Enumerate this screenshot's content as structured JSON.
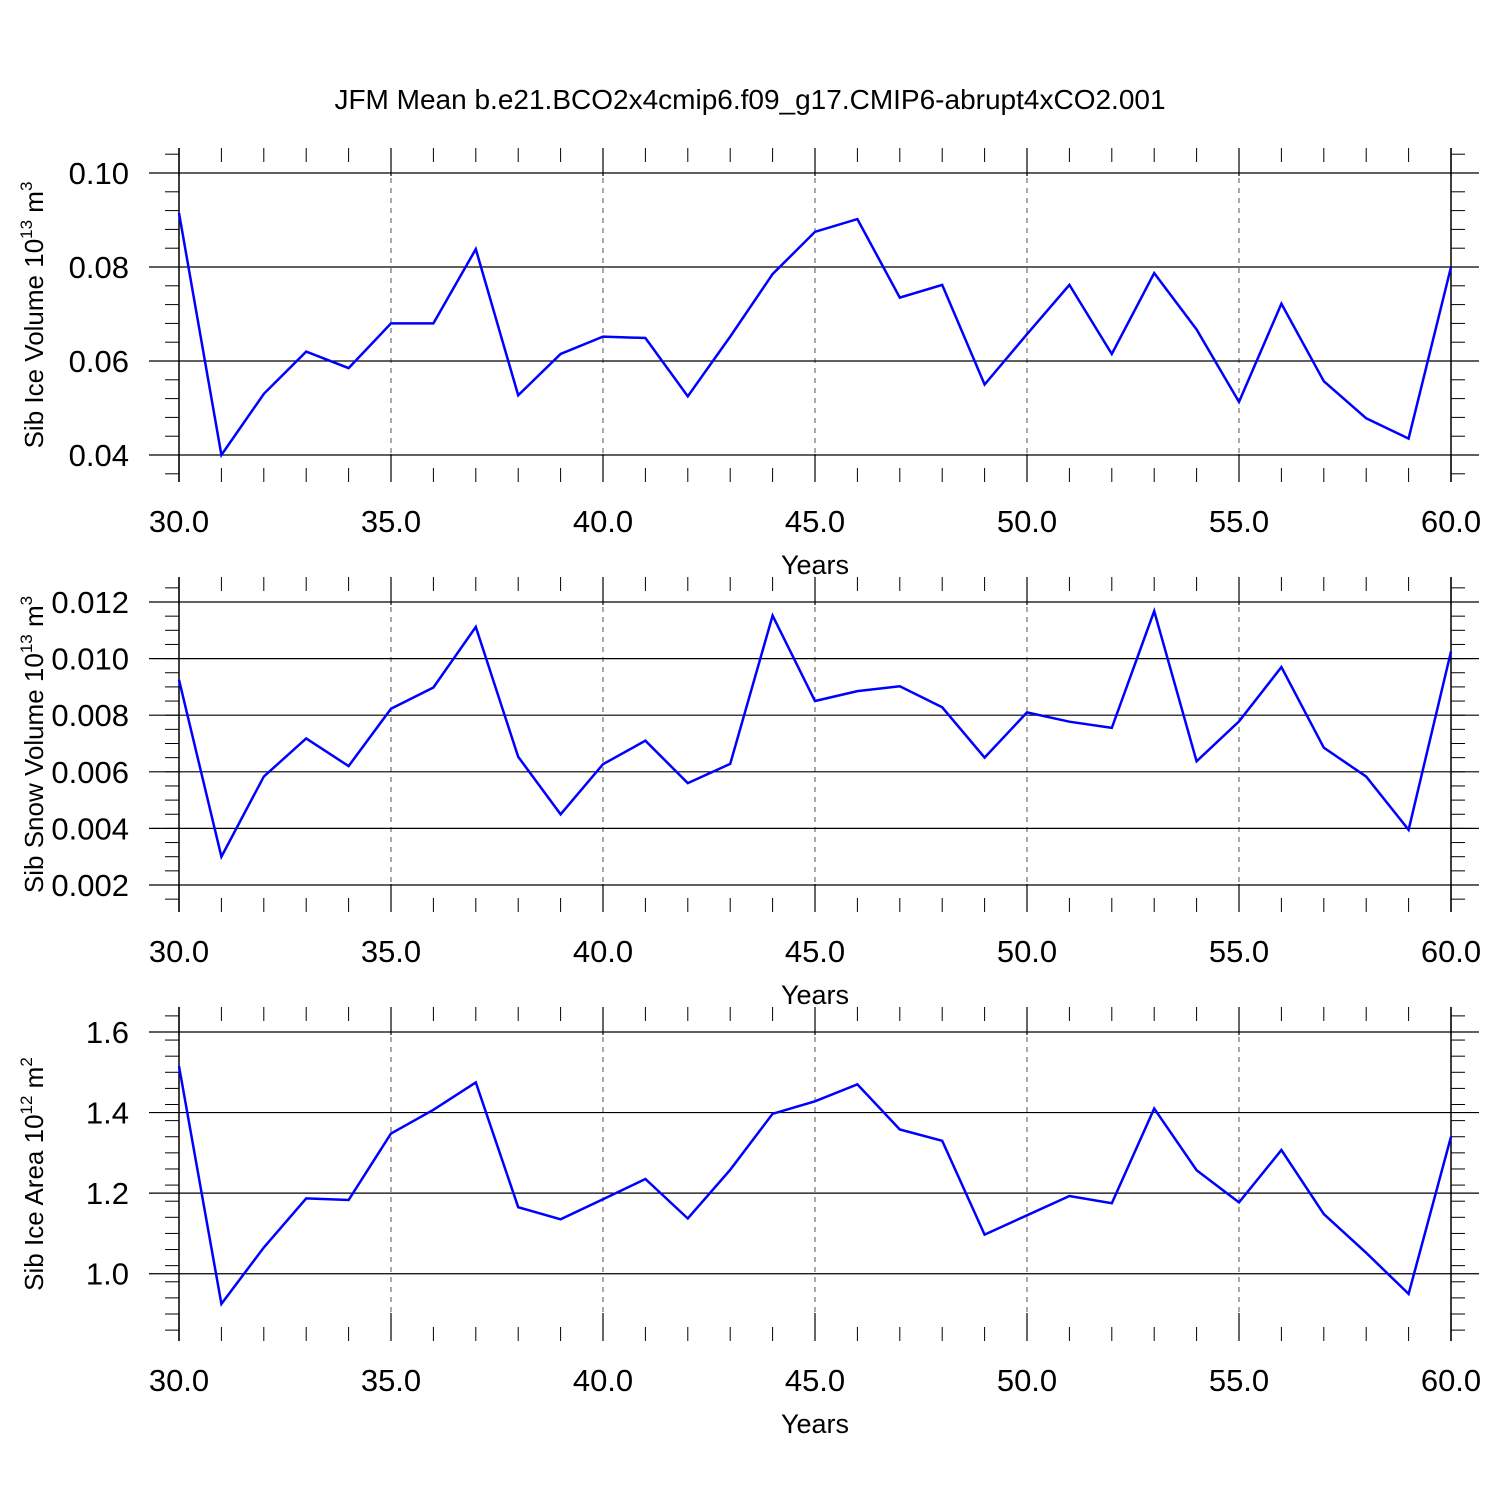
{
  "title": "JFM Mean b.e21.BCO2x4cmip6.f09_g17.CMIP6-abrupt4xCO2.001",
  "colors": {
    "line": "#0000ff",
    "axis": "#000000",
    "grid": "#555555"
  },
  "chart_data": [
    {
      "type": "line",
      "ylabel": {
        "main": "Sib Ice Volume 10",
        "sup": "13",
        "unit": " m",
        "unit_sup": "3"
      },
      "xlabel": "Years",
      "xlim": [
        30,
        60
      ],
      "ylim": [
        0.04,
        0.1
      ],
      "x_ticks": [
        30,
        35,
        40,
        45,
        50,
        55,
        60
      ],
      "x_tick_labels": [
        "30.0",
        "35.0",
        "40.0",
        "45.0",
        "50.0",
        "55.0",
        "60.0"
      ],
      "y_ticks": [
        0.04,
        0.06,
        0.08,
        0.1
      ],
      "y_tick_labels": [
        "0.04",
        "0.06",
        "0.08",
        "0.10"
      ],
      "grid": "vertical dashed at major x ticks",
      "x": [
        30,
        31,
        32,
        33,
        34,
        35,
        36,
        37,
        38,
        39,
        40,
        41,
        42,
        43,
        44,
        45,
        46,
        47,
        48,
        49,
        50,
        51,
        52,
        53,
        54,
        55,
        56,
        57,
        58,
        59,
        60
      ],
      "series": [
        {
          "values": [
            0.0915,
            0.04,
            0.053,
            0.062,
            0.0585,
            0.068,
            0.068,
            0.0838,
            0.0527,
            0.0615,
            0.0652,
            0.0649,
            0.0525,
            0.0652,
            0.0785,
            0.0875,
            0.0902,
            0.0735,
            0.0762,
            0.055,
            0.0657,
            0.0762,
            0.0615,
            0.0787,
            0.0667,
            0.0513,
            0.0722,
            0.0557,
            0.0478,
            0.0435,
            0.08
          ]
        }
      ]
    },
    {
      "type": "line",
      "ylabel": {
        "main": "Sib Snow Volume 10",
        "sup": "13",
        "unit": " m",
        "unit_sup": "3"
      },
      "xlabel": "Years",
      "xlim": [
        30,
        60
      ],
      "ylim": [
        0.002,
        0.012
      ],
      "x_ticks": [
        30,
        35,
        40,
        45,
        50,
        55,
        60
      ],
      "x_tick_labels": [
        "30.0",
        "35.0",
        "40.0",
        "45.0",
        "50.0",
        "55.0",
        "60.0"
      ],
      "y_ticks": [
        0.002,
        0.004,
        0.006,
        0.008,
        0.01,
        0.012
      ],
      "y_tick_labels": [
        "0.002",
        "0.004",
        "0.006",
        "0.008",
        "0.010",
        "0.012"
      ],
      "grid": "vertical dashed at major x ticks",
      "x": [
        30,
        31,
        32,
        33,
        34,
        35,
        36,
        37,
        38,
        39,
        40,
        41,
        42,
        43,
        44,
        45,
        46,
        47,
        48,
        49,
        50,
        51,
        52,
        53,
        54,
        55,
        56,
        57,
        58,
        59,
        60
      ],
      "series": [
        {
          "values": [
            0.00925,
            0.003,
            0.00583,
            0.00718,
            0.0062,
            0.00823,
            0.00898,
            0.01112,
            0.00653,
            0.0045,
            0.00627,
            0.0071,
            0.0056,
            0.00628,
            0.01152,
            0.0085,
            0.00885,
            0.00902,
            0.00828,
            0.0065,
            0.0081,
            0.00777,
            0.00755,
            0.01168,
            0.00637,
            0.00778,
            0.0097,
            0.00685,
            0.00583,
            0.00395,
            0.01025
          ]
        }
      ]
    },
    {
      "type": "line",
      "ylabel": {
        "main": "Sib Ice Area 10",
        "sup": "12",
        "unit": " m",
        "unit_sup": "2"
      },
      "xlabel": "Years",
      "xlim": [
        30,
        60
      ],
      "ylim": [
        0.9,
        1.6
      ],
      "x_ticks": [
        30,
        35,
        40,
        45,
        50,
        55,
        60
      ],
      "x_tick_labels": [
        "30.0",
        "35.0",
        "40.0",
        "45.0",
        "50.0",
        "55.0",
        "60.0"
      ],
      "y_ticks": [
        1.0,
        1.2,
        1.4,
        1.6
      ],
      "y_tick_labels": [
        "1.0",
        "1.2",
        "1.4",
        "1.6"
      ],
      "grid": "vertical dashed at major x ticks",
      "x": [
        30,
        31,
        32,
        33,
        34,
        35,
        36,
        37,
        38,
        39,
        40,
        41,
        42,
        43,
        44,
        45,
        46,
        47,
        48,
        49,
        50,
        51,
        52,
        53,
        54,
        55,
        56,
        57,
        58,
        59,
        60
      ],
      "series": [
        {
          "values": [
            1.515,
            0.925,
            1.065,
            1.187,
            1.183,
            1.348,
            1.407,
            1.475,
            1.165,
            1.135,
            1.185,
            1.235,
            1.137,
            1.258,
            1.397,
            1.428,
            1.47,
            1.358,
            1.33,
            1.097,
            1.145,
            1.193,
            1.175,
            1.41,
            1.257,
            1.177,
            1.307,
            1.148,
            1.052,
            0.95,
            1.34
          ]
        }
      ]
    }
  ]
}
